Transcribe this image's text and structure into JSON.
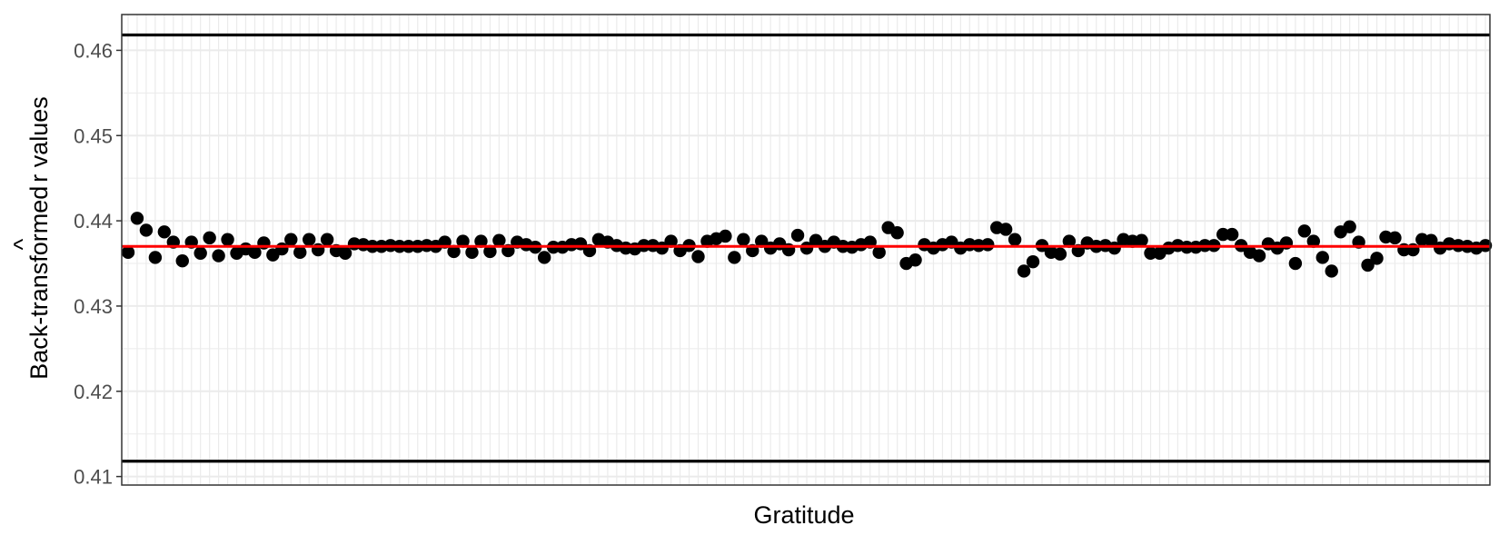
{
  "chart_data": {
    "type": "scatter",
    "title": "",
    "xlabel": "Gratitude",
    "ylabel": "Back-transformed r̂ values",
    "ylabel_main": "Back-transformed",
    "ylabel_hat": "^",
    "ylabel_r": "r",
    "ylabel_tail": " values",
    "ylim": [
      0.409,
      0.4642
    ],
    "yticks": [
      0.41,
      0.42,
      0.43,
      0.44,
      0.45,
      0.46
    ],
    "ytick_labels": [
      "0.41",
      "0.42",
      "0.43",
      "0.44",
      "0.45",
      "0.46"
    ],
    "grid": true,
    "legend": "none",
    "reference_lines": {
      "upper": 0.4618,
      "lower": 0.4118,
      "mean": 0.437
    },
    "colors": {
      "points": "#000000",
      "mean_line": "#ff0000",
      "limit_lines": "#000000",
      "grid": "#ebebeb",
      "panel_border": "#333333"
    },
    "series": [
      {
        "values": [
          0.4363,
          0.4403,
          0.4389,
          0.4357,
          0.4387,
          0.4375,
          0.4353,
          0.4375,
          0.4362,
          0.438,
          0.4359,
          0.4378,
          0.4362,
          0.4367,
          0.4363,
          0.4374,
          0.436,
          0.4367,
          0.4378,
          0.4363,
          0.4378,
          0.4366,
          0.4378,
          0.4365,
          0.4362,
          0.4373,
          0.4372,
          0.437,
          0.437,
          0.4371,
          0.437,
          0.437,
          0.437,
          0.4371,
          0.437,
          0.4375,
          0.4364,
          0.4376,
          0.4363,
          0.4376,
          0.4364,
          0.4377,
          0.4365,
          0.4375,
          0.4372,
          0.4369,
          0.4357,
          0.4369,
          0.4369,
          0.4372,
          0.4373,
          0.4365,
          0.4378,
          0.4375,
          0.4371,
          0.4368,
          0.4367,
          0.4371,
          0.4371,
          0.4368,
          0.4376,
          0.4365,
          0.4371,
          0.4358,
          0.4376,
          0.4379,
          0.4382,
          0.4357,
          0.4378,
          0.4365,
          0.4376,
          0.4368,
          0.4373,
          0.4366,
          0.4383,
          0.4368,
          0.4377,
          0.437,
          0.4375,
          0.437,
          0.4369,
          0.4372,
          0.4375,
          0.4363,
          0.4392,
          0.4386,
          0.435,
          0.4354,
          0.4372,
          0.4368,
          0.4372,
          0.4375,
          0.4368,
          0.4372,
          0.4371,
          0.4372,
          0.4392,
          0.439,
          0.4378,
          0.4341,
          0.4352,
          0.4371,
          0.4363,
          0.4361,
          0.4376,
          0.4365,
          0.4374,
          0.437,
          0.4371,
          0.4368,
          0.4378,
          0.4376,
          0.4377,
          0.4362,
          0.4362,
          0.4368,
          0.4371,
          0.4369,
          0.4369,
          0.4371,
          0.4371,
          0.4384,
          0.4384,
          0.4371,
          0.4363,
          0.4359,
          0.4373,
          0.4368,
          0.4374,
          0.435,
          0.4388,
          0.4376,
          0.4357,
          0.4341,
          0.4387,
          0.4393,
          0.4375,
          0.4348,
          0.4356,
          0.4381,
          0.438,
          0.4366,
          0.4366,
          0.4378,
          0.4377,
          0.4368,
          0.4373,
          0.4371,
          0.437,
          0.4368,
          0.4371
        ]
      }
    ]
  }
}
